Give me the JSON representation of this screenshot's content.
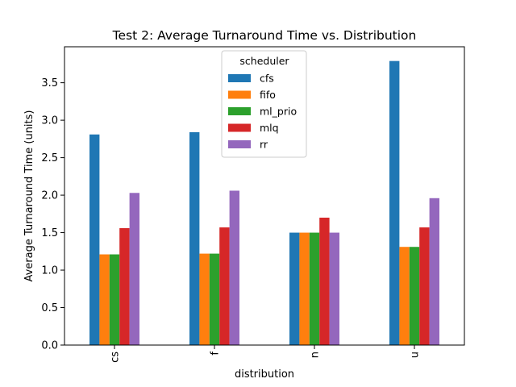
{
  "chart_data": {
    "type": "bar",
    "title": "Test 2: Average Turnaround Time vs. Distribution",
    "xlabel": "distribution",
    "ylabel": "Average Turnaround Time (units)",
    "categories": [
      "cs",
      "f",
      "n",
      "u"
    ],
    "ylim": [
      0,
      3.98
    ],
    "yticks": [
      "0.0",
      "0.5",
      "1.0",
      "1.5",
      "2.0",
      "2.5",
      "3.0",
      "3.5"
    ],
    "grid": false,
    "legend": {
      "title": "scheduler",
      "placement": "top-center"
    },
    "series": [
      {
        "name": "cfs",
        "color": "#1f77b4",
        "values": [
          2.81,
          2.84,
          1.5,
          3.79
        ]
      },
      {
        "name": "fifo",
        "color": "#ff7f0e",
        "values": [
          1.21,
          1.22,
          1.5,
          1.31
        ]
      },
      {
        "name": "ml_prio",
        "color": "#2ca02c",
        "values": [
          1.21,
          1.22,
          1.5,
          1.31
        ]
      },
      {
        "name": "mlq",
        "color": "#d62728",
        "values": [
          1.56,
          1.57,
          1.7,
          1.57
        ]
      },
      {
        "name": "rr",
        "color": "#9467bd",
        "values": [
          2.03,
          2.06,
          1.5,
          1.96
        ]
      }
    ]
  }
}
